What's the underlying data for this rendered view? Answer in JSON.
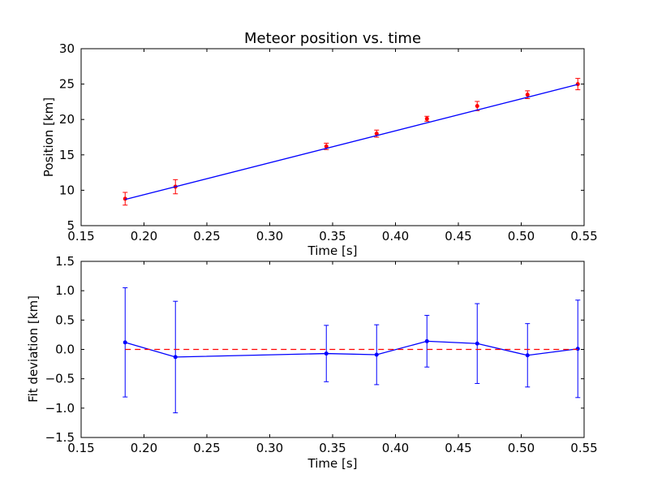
{
  "chart_data": [
    {
      "type": "line",
      "title": "Meteor position vs. time",
      "xlabel": "Time [s]",
      "ylabel": "Position [km]",
      "xlim": [
        0.15,
        0.55
      ],
      "ylim": [
        5,
        30
      ],
      "xticks": [
        "0.15",
        "0.20",
        "0.25",
        "0.30",
        "0.35",
        "0.40",
        "0.45",
        "0.50",
        "0.55"
      ],
      "yticks": [
        "5",
        "10",
        "15",
        "20",
        "25",
        "30"
      ],
      "grid": false,
      "series": [
        {
          "kind": "measurements",
          "style": "red points with error bars",
          "x": [
            0.185,
            0.225,
            0.345,
            0.385,
            0.425,
            0.465,
            0.505,
            0.545
          ],
          "y": [
            8.8,
            10.5,
            16.2,
            18.0,
            20.1,
            21.9,
            23.5,
            25.0
          ],
          "yerr": [
            0.9,
            1.0,
            0.45,
            0.5,
            0.35,
            0.65,
            0.55,
            0.8
          ],
          "color": "#ff0000"
        },
        {
          "kind": "linear fit",
          "style": "blue line",
          "x": [
            0.185,
            0.545
          ],
          "y": [
            8.7,
            24.95
          ],
          "color": "#0000ff"
        }
      ]
    },
    {
      "type": "line",
      "title": "",
      "xlabel": "Time [s]",
      "ylabel": "Fit deviation [km]",
      "xlim": [
        0.15,
        0.55
      ],
      "ylim": [
        -1.5,
        1.5
      ],
      "xticks": [
        "0.15",
        "0.20",
        "0.25",
        "0.30",
        "0.35",
        "0.40",
        "0.45",
        "0.50",
        "0.55"
      ],
      "yticks": [
        "−1.5",
        "−1.0",
        "−0.5",
        "0.0",
        "0.5",
        "1.0",
        "1.5"
      ],
      "grid": false,
      "series": [
        {
          "kind": "residuals",
          "style": "blue line with points and error bars",
          "x": [
            0.185,
            0.225,
            0.345,
            0.385,
            0.425,
            0.465,
            0.505,
            0.545
          ],
          "y": [
            0.12,
            -0.13,
            -0.07,
            -0.09,
            0.14,
            0.1,
            -0.1,
            0.01
          ],
          "yerr": [
            0.93,
            0.95,
            0.48,
            0.51,
            0.44,
            0.68,
            0.54,
            0.83
          ],
          "color": "#0000ff"
        },
        {
          "kind": "zero reference",
          "style": "red dashed line",
          "x": [
            0.185,
            0.545
          ],
          "y": [
            0.0,
            0.0
          ],
          "color": "#ff0000"
        }
      ]
    }
  ]
}
